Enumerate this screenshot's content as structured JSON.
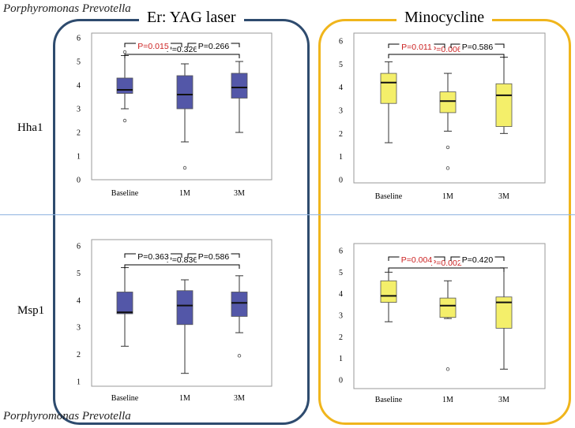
{
  "header": {
    "species_top": "Porphyromonas Prevotella",
    "species_bottom": "Porphyromonas Prevotella"
  },
  "groups": {
    "left": {
      "title": "Er: YAG laser",
      "frame_color": "#2e4b6e"
    },
    "right": {
      "title": "Minocycline",
      "frame_color": "#f0b51c"
    }
  },
  "rows": {
    "top": "Hha1",
    "bottom": "Msp1"
  },
  "colors": {
    "red_p": "#cc2222",
    "black_p": "#000000",
    "blue_fill": "#5357a8",
    "yellow_fill": "#f4ef6a"
  },
  "chart_data": [
    {
      "type": "boxplot",
      "panel": "laser-hha1",
      "row": "Hha1",
      "group": "Er: YAG laser",
      "categories": [
        "Baseline",
        "1M",
        "3M"
      ],
      "ylim": [
        0,
        6
      ],
      "yticks": [
        "0",
        "1",
        "2",
        "3",
        "4",
        "5",
        "6"
      ],
      "fill": "#5357a8",
      "boxes": [
        {
          "min": 3.0,
          "q1": 3.65,
          "median": 3.8,
          "q3": 4.3,
          "max": 5.25,
          "outliers": [
            2.5,
            5.4
          ]
        },
        {
          "min": 1.6,
          "q1": 3.0,
          "median": 3.6,
          "q3": 4.4,
          "max": 4.9,
          "outliers": [
            0.5
          ]
        },
        {
          "min": 2.0,
          "q1": 3.45,
          "median": 3.9,
          "q3": 4.5,
          "max": 5.0,
          "outliers": []
        }
      ],
      "comparisons": [
        {
          "from": 0,
          "to": 2,
          "label": "P=0.326",
          "significant": false,
          "level": 2
        },
        {
          "from": 0,
          "to": 1,
          "label": "P=0.015",
          "significant": true,
          "level": 1
        },
        {
          "from": 1,
          "to": 2,
          "label": "P=0.266",
          "significant": false,
          "level": 1
        }
      ]
    },
    {
      "type": "boxplot",
      "panel": "mino-hha1",
      "row": "Hha1",
      "group": "Minocycline",
      "categories": [
        "Baseline",
        "1M",
        "3M"
      ],
      "ylim": [
        0,
        6
      ],
      "yticks": [
        "0",
        "1",
        "2",
        "3",
        "4",
        "5",
        "6"
      ],
      "fill": "#f4ef6a",
      "boxes": [
        {
          "min": 1.6,
          "q1": 3.3,
          "median": 4.2,
          "q3": 4.6,
          "max": 5.1,
          "outliers": []
        },
        {
          "min": 2.1,
          "q1": 2.9,
          "median": 3.4,
          "q3": 3.8,
          "max": 4.6,
          "outliers": [
            1.4,
            0.5
          ]
        },
        {
          "min": 2.0,
          "q1": 2.3,
          "median": 3.65,
          "q3": 4.15,
          "max": 5.3,
          "outliers": []
        }
      ],
      "comparisons": [
        {
          "from": 0,
          "to": 2,
          "label": "P=0.006",
          "significant": true,
          "level": 2
        },
        {
          "from": 0,
          "to": 1,
          "label": "P=0.011",
          "significant": true,
          "level": 1
        },
        {
          "from": 1,
          "to": 2,
          "label": "P=0.586",
          "significant": false,
          "level": 1
        }
      ]
    },
    {
      "type": "boxplot",
      "panel": "laser-msp1",
      "row": "Msp1",
      "group": "Er: YAG laser",
      "categories": [
        "Baseline",
        "1M",
        "3M"
      ],
      "ylim": [
        1,
        6
      ],
      "yticks": [
        "1",
        "2",
        "3",
        "4",
        "5",
        "6"
      ],
      "fill": "#5357a8",
      "boxes": [
        {
          "min": 2.3,
          "q1": 3.5,
          "median": 3.55,
          "q3": 4.3,
          "max": 5.2,
          "outliers": []
        },
        {
          "min": 1.3,
          "q1": 3.1,
          "median": 3.8,
          "q3": 4.35,
          "max": 4.75,
          "outliers": []
        },
        {
          "min": 2.8,
          "q1": 3.4,
          "median": 3.9,
          "q3": 4.3,
          "max": 4.9,
          "outliers": [
            1.95
          ]
        }
      ],
      "comparisons": [
        {
          "from": 0,
          "to": 2,
          "label": "P=0.836",
          "significant": false,
          "level": 2
        },
        {
          "from": 0,
          "to": 1,
          "label": "P=0.363",
          "significant": false,
          "level": 1
        },
        {
          "from": 1,
          "to": 2,
          "label": "P=0.586",
          "significant": false,
          "level": 1
        }
      ]
    },
    {
      "type": "boxplot",
      "panel": "mino-msp1",
      "row": "Msp1",
      "group": "Minocycline",
      "categories": [
        "Baseline",
        "1M",
        "3M"
      ],
      "ylim": [
        0,
        6
      ],
      "yticks": [
        "0",
        "1",
        "2",
        "3",
        "4",
        "5",
        "6"
      ],
      "fill": "#f4ef6a",
      "boxes": [
        {
          "min": 2.7,
          "q1": 3.6,
          "median": 3.9,
          "q3": 4.6,
          "max": 5.0,
          "outliers": []
        },
        {
          "min": 2.85,
          "q1": 2.9,
          "median": 3.45,
          "q3": 3.8,
          "max": 4.6,
          "outliers": [
            0.5
          ]
        },
        {
          "min": 0.5,
          "q1": 2.4,
          "median": 3.6,
          "q3": 3.85,
          "max": 5.2,
          "outliers": []
        }
      ],
      "comparisons": [
        {
          "from": 0,
          "to": 2,
          "label": "P=0.002",
          "significant": true,
          "level": 2
        },
        {
          "from": 0,
          "to": 1,
          "label": "P=0.004",
          "significant": true,
          "level": 1
        },
        {
          "from": 1,
          "to": 2,
          "label": "P=0.420",
          "significant": false,
          "level": 1
        }
      ]
    }
  ]
}
